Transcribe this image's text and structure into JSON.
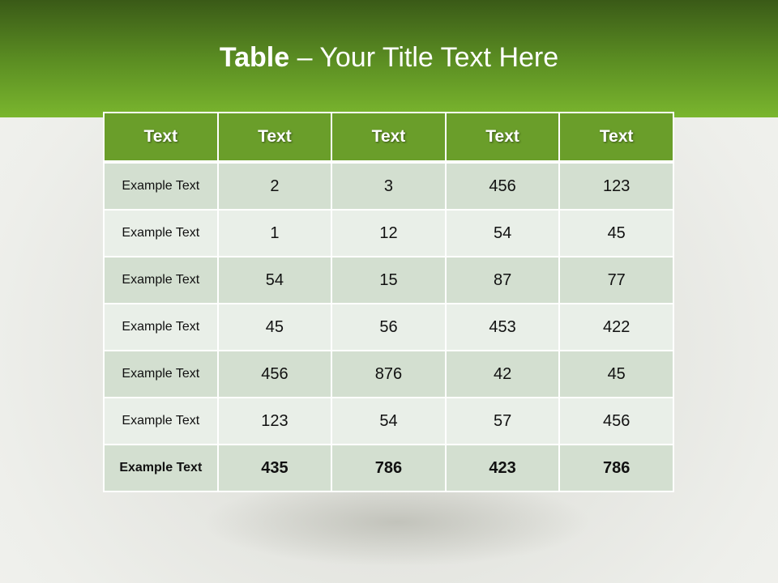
{
  "title": {
    "bold": "Table",
    "rest": " – Your Title Text Here"
  },
  "table": {
    "headers": [
      "Text",
      "Text",
      "Text",
      "Text",
      "Text"
    ],
    "rows": [
      [
        "Example Text",
        "2",
        "3",
        "456",
        "123"
      ],
      [
        "Example Text",
        "1",
        "12",
        "54",
        "45"
      ],
      [
        "Example Text",
        "54",
        "15",
        "87",
        "77"
      ],
      [
        "Example Text",
        "45",
        "56",
        "453",
        "422"
      ],
      [
        "Example Text",
        "456",
        "876",
        "42",
        "45"
      ],
      [
        "Example Text",
        "123",
        "54",
        "57",
        "456"
      ],
      [
        "Example Text",
        "435",
        "786",
        "423",
        "786"
      ]
    ]
  },
  "colors": {
    "header": "#6a9e2a",
    "row_dark": "#d3dfd0",
    "row_light": "#e9efe8"
  }
}
